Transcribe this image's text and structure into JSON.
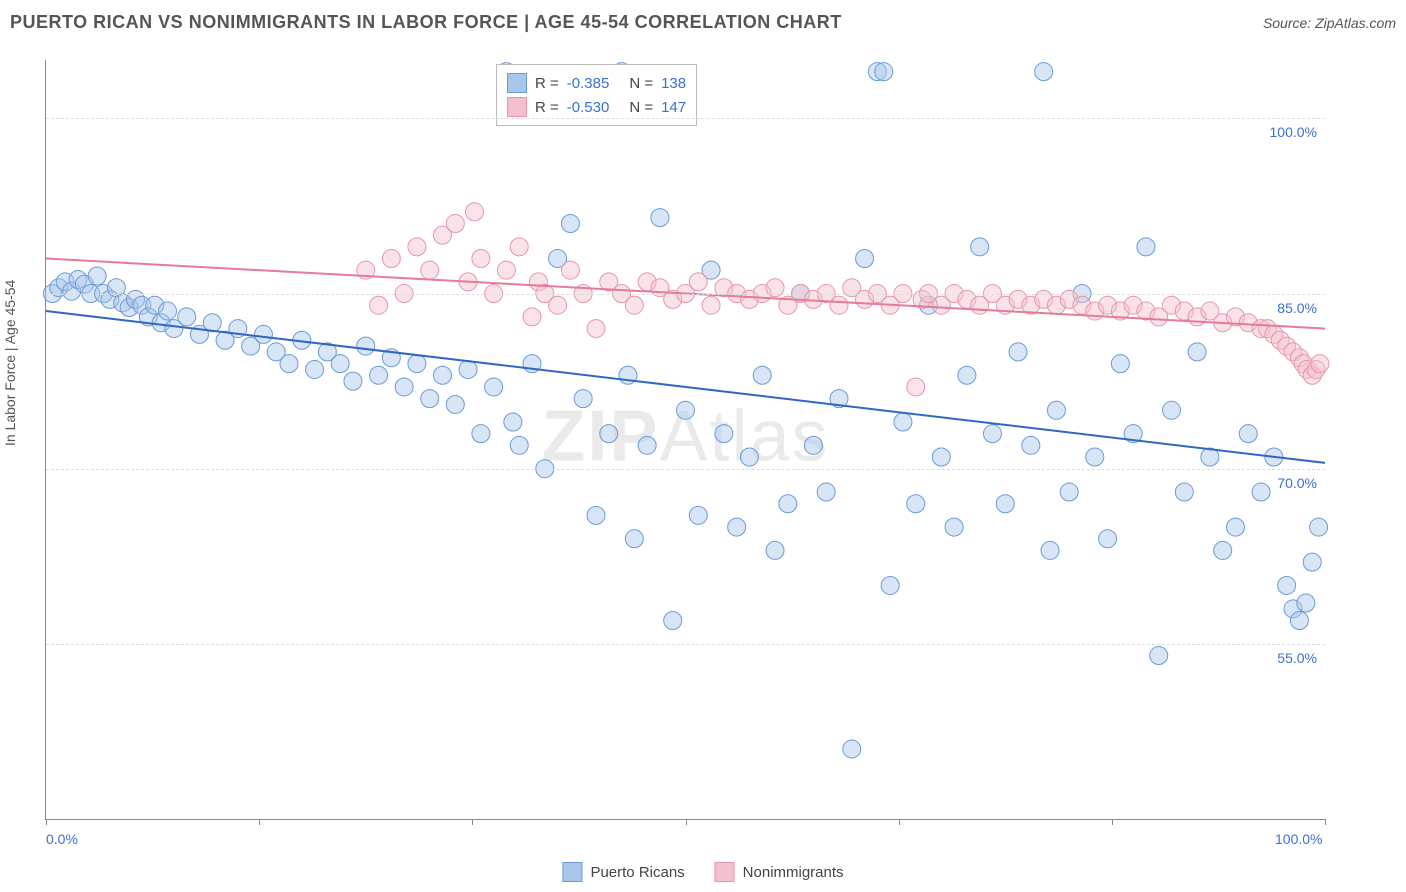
{
  "title": "PUERTO RICAN VS NONIMMIGRANTS IN LABOR FORCE | AGE 45-54 CORRELATION CHART",
  "source": "Source: ZipAtlas.com",
  "watermark_left": "ZIP",
  "watermark_right": "Atlas",
  "y_axis_label": "In Labor Force | Age 45-54",
  "chart": {
    "type": "scatter",
    "background_color": "#ffffff",
    "grid_color": "#dddddd",
    "axis_color": "#888888",
    "xlim": [
      0,
      100
    ],
    "ylim": [
      40,
      105
    ],
    "x_ticks": [
      0,
      16.67,
      33.33,
      50,
      66.67,
      83.33,
      100
    ],
    "x_tick_labels": {
      "0": "0.0%",
      "100": "100.0%"
    },
    "x_tick_label_color": "#3a6fd8",
    "y_ticks": [
      55,
      70,
      85,
      100
    ],
    "y_tick_labels": {
      "55": "55.0%",
      "70": "70.0%",
      "85": "85.0%",
      "100": "100.0%"
    },
    "y_tick_label_color": "#3a6fd8",
    "marker_radius": 9,
    "marker_opacity": 0.45,
    "trend_line_width": 2,
    "series": [
      {
        "key": "puerto_ricans",
        "label": "Puerto Ricans",
        "fill_color": "#a9c6ec",
        "stroke_color": "#6a9bd8",
        "line_color": "#2f66c4",
        "R": "-0.385",
        "N": "138",
        "trend": {
          "x1": 0,
          "y1": 83.5,
          "x2": 100,
          "y2": 70.5
        },
        "points": [
          [
            0.5,
            85
          ],
          [
            1,
            85.5
          ],
          [
            1.5,
            86
          ],
          [
            2,
            85.2
          ],
          [
            2.5,
            86.2
          ],
          [
            3,
            85.8
          ],
          [
            3.5,
            85
          ],
          [
            4,
            86.5
          ],
          [
            4.5,
            85
          ],
          [
            5,
            84.5
          ],
          [
            5.5,
            85.5
          ],
          [
            6,
            84.2
          ],
          [
            6.5,
            83.8
          ],
          [
            7,
            84.5
          ],
          [
            7.5,
            84
          ],
          [
            8,
            83
          ],
          [
            8.5,
            84
          ],
          [
            9,
            82.5
          ],
          [
            9.5,
            83.5
          ],
          [
            10,
            82
          ],
          [
            11,
            83
          ],
          [
            12,
            81.5
          ],
          [
            13,
            82.5
          ],
          [
            14,
            81
          ],
          [
            15,
            82
          ],
          [
            16,
            80.5
          ],
          [
            17,
            81.5
          ],
          [
            18,
            80
          ],
          [
            19,
            79
          ],
          [
            20,
            81
          ],
          [
            21,
            78.5
          ],
          [
            22,
            80
          ],
          [
            23,
            79
          ],
          [
            24,
            77.5
          ],
          [
            25,
            80.5
          ],
          [
            26,
            78
          ],
          [
            27,
            79.5
          ],
          [
            28,
            77
          ],
          [
            29,
            79
          ],
          [
            30,
            76
          ],
          [
            31,
            78
          ],
          [
            32,
            75.5
          ],
          [
            33,
            78.5
          ],
          [
            34,
            73
          ],
          [
            35,
            77
          ],
          [
            36,
            104
          ],
          [
            36.5,
            74
          ],
          [
            37,
            72
          ],
          [
            38,
            79
          ],
          [
            39,
            70
          ],
          [
            40,
            88
          ],
          [
            41,
            91
          ],
          [
            42,
            76
          ],
          [
            43,
            66
          ],
          [
            44,
            73
          ],
          [
            45,
            104
          ],
          [
            45.5,
            78
          ],
          [
            46,
            64
          ],
          [
            47,
            72
          ],
          [
            48,
            91.5
          ],
          [
            49,
            57
          ],
          [
            50,
            75
          ],
          [
            51,
            66
          ],
          [
            52,
            87
          ],
          [
            53,
            73
          ],
          [
            54,
            65
          ],
          [
            55,
            71
          ],
          [
            56,
            78
          ],
          [
            57,
            63
          ],
          [
            58,
            67
          ],
          [
            59,
            85
          ],
          [
            60,
            72
          ],
          [
            61,
            68
          ],
          [
            62,
            76
          ],
          [
            63,
            46
          ],
          [
            64,
            88
          ],
          [
            65,
            104
          ],
          [
            65.5,
            104
          ],
          [
            66,
            60
          ],
          [
            67,
            74
          ],
          [
            68,
            67
          ],
          [
            69,
            84
          ],
          [
            70,
            71
          ],
          [
            71,
            65
          ],
          [
            72,
            78
          ],
          [
            73,
            89
          ],
          [
            74,
            73
          ],
          [
            75,
            67
          ],
          [
            76,
            80
          ],
          [
            77,
            72
          ],
          [
            78,
            104
          ],
          [
            78.5,
            63
          ],
          [
            79,
            75
          ],
          [
            80,
            68
          ],
          [
            81,
            85
          ],
          [
            82,
            71
          ],
          [
            83,
            64
          ],
          [
            84,
            79
          ],
          [
            85,
            73
          ],
          [
            86,
            89
          ],
          [
            87,
            54
          ],
          [
            88,
            75
          ],
          [
            89,
            68
          ],
          [
            90,
            80
          ],
          [
            91,
            71
          ],
          [
            92,
            63
          ],
          [
            93,
            65
          ],
          [
            94,
            73
          ],
          [
            95,
            68
          ],
          [
            96,
            71
          ],
          [
            97,
            60
          ],
          [
            97.5,
            58
          ],
          [
            98,
            57
          ],
          [
            98.5,
            58.5
          ],
          [
            99,
            62
          ],
          [
            99.5,
            65
          ]
        ]
      },
      {
        "key": "nonimmigrants",
        "label": "Nonimmigrants",
        "fill_color": "#f4c0cd",
        "stroke_color": "#e895ac",
        "line_color": "#e77a97",
        "R": "-0.530",
        "N": "147",
        "trend": {
          "x1": 0,
          "y1": 88.0,
          "x2": 100,
          "y2": 82.0
        },
        "points": [
          [
            25,
            87
          ],
          [
            26,
            84
          ],
          [
            27,
            88
          ],
          [
            28,
            85
          ],
          [
            29,
            89
          ],
          [
            30,
            87
          ],
          [
            31,
            90
          ],
          [
            32,
            91
          ],
          [
            33,
            86
          ],
          [
            33.5,
            92
          ],
          [
            34,
            88
          ],
          [
            35,
            85
          ],
          [
            36,
            87
          ],
          [
            37,
            89
          ],
          [
            38,
            83
          ],
          [
            38.5,
            86
          ],
          [
            39,
            85
          ],
          [
            40,
            84
          ],
          [
            41,
            87
          ],
          [
            42,
            85
          ],
          [
            43,
            82
          ],
          [
            44,
            86
          ],
          [
            45,
            85
          ],
          [
            46,
            84
          ],
          [
            47,
            86
          ],
          [
            48,
            85.5
          ],
          [
            49,
            84.5
          ],
          [
            50,
            85
          ],
          [
            51,
            86
          ],
          [
            52,
            84
          ],
          [
            53,
            85.5
          ],
          [
            54,
            85
          ],
          [
            55,
            84.5
          ],
          [
            56,
            85
          ],
          [
            57,
            85.5
          ],
          [
            58,
            84
          ],
          [
            59,
            85
          ],
          [
            60,
            84.5
          ],
          [
            61,
            85
          ],
          [
            62,
            84
          ],
          [
            63,
            85.5
          ],
          [
            64,
            84.5
          ],
          [
            65,
            85
          ],
          [
            66,
            84
          ],
          [
            67,
            85
          ],
          [
            68,
            77
          ],
          [
            68.5,
            84.5
          ],
          [
            69,
            85
          ],
          [
            70,
            84
          ],
          [
            71,
            85
          ],
          [
            72,
            84.5
          ],
          [
            73,
            84
          ],
          [
            74,
            85
          ],
          [
            75,
            84
          ],
          [
            76,
            84.5
          ],
          [
            77,
            84
          ],
          [
            78,
            84.5
          ],
          [
            79,
            84
          ],
          [
            80,
            84.5
          ],
          [
            81,
            84
          ],
          [
            82,
            83.5
          ],
          [
            83,
            84
          ],
          [
            84,
            83.5
          ],
          [
            85,
            84
          ],
          [
            86,
            83.5
          ],
          [
            87,
            83
          ],
          [
            88,
            84
          ],
          [
            89,
            83.5
          ],
          [
            90,
            83
          ],
          [
            91,
            83.5
          ],
          [
            92,
            82.5
          ],
          [
            93,
            83
          ],
          [
            94,
            82.5
          ],
          [
            95,
            82
          ],
          [
            95.5,
            82
          ],
          [
            96,
            81.5
          ],
          [
            96.5,
            81
          ],
          [
            97,
            80.5
          ],
          [
            97.5,
            80
          ],
          [
            98,
            79.5
          ],
          [
            98.3,
            79
          ],
          [
            98.6,
            78.5
          ],
          [
            99,
            78
          ],
          [
            99.3,
            78.5
          ],
          [
            99.6,
            79
          ]
        ]
      }
    ]
  },
  "stats_box": {
    "rows": [
      {
        "series": "puerto_ricans",
        "R_label": "R =",
        "N_label": "N ="
      },
      {
        "series": "nonimmigrants",
        "R_label": "R =",
        "N_label": "N ="
      }
    ]
  },
  "legend": {
    "items": [
      {
        "series": "puerto_ricans"
      },
      {
        "series": "nonimmigrants"
      }
    ]
  }
}
